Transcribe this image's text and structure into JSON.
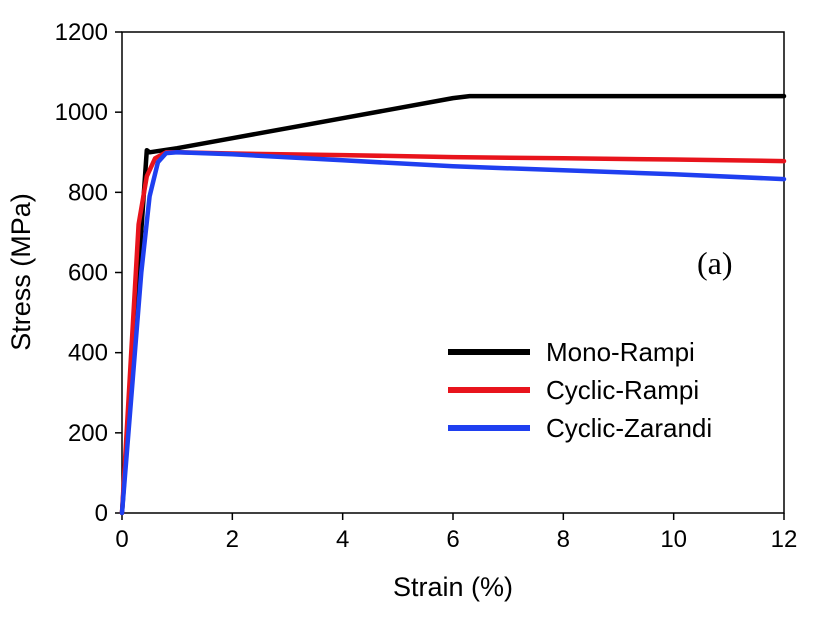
{
  "chart_data": {
    "type": "line",
    "xlabel": "Strain (%)",
    "ylabel": "Stress (MPa)",
    "xlim": [
      0,
      12
    ],
    "ylim": [
      0,
      1200
    ],
    "xticks": [
      0,
      2,
      4,
      6,
      8,
      10,
      12
    ],
    "yticks": [
      0,
      200,
      400,
      600,
      800,
      1000,
      1200
    ],
    "grid": false,
    "legend_position": "bottom-right",
    "annotation": "(a)",
    "series": [
      {
        "name": "Mono-Rampi",
        "color": "#000000",
        "points": [
          [
            0,
            0
          ],
          [
            0.45,
            905
          ],
          [
            0.5,
            900
          ],
          [
            1.0,
            910
          ],
          [
            2.0,
            935
          ],
          [
            3.0,
            960
          ],
          [
            4.0,
            985
          ],
          [
            5.0,
            1010
          ],
          [
            6.0,
            1035
          ],
          [
            6.3,
            1040
          ],
          [
            8.0,
            1040
          ],
          [
            10.0,
            1040
          ],
          [
            12.0,
            1040
          ]
        ]
      },
      {
        "name": "Cyclic-Rampi",
        "color": "#e8141c",
        "points": [
          [
            0,
            0
          ],
          [
            0.3,
            720
          ],
          [
            0.45,
            840
          ],
          [
            0.6,
            885
          ],
          [
            0.8,
            900
          ],
          [
            1.0,
            900
          ],
          [
            2.0,
            897
          ],
          [
            4.0,
            893
          ],
          [
            6.0,
            888
          ],
          [
            8.0,
            885
          ],
          [
            10.0,
            882
          ],
          [
            12.0,
            878
          ]
        ]
      },
      {
        "name": "Cyclic-Zarandi",
        "color": "#1f3ff0",
        "points": [
          [
            0,
            0
          ],
          [
            0.35,
            600
          ],
          [
            0.5,
            790
          ],
          [
            0.65,
            875
          ],
          [
            0.8,
            898
          ],
          [
            1.0,
            900
          ],
          [
            2.0,
            895
          ],
          [
            4.0,
            880
          ],
          [
            6.0,
            865
          ],
          [
            8.0,
            855
          ],
          [
            10.0,
            845
          ],
          [
            12.0,
            833
          ]
        ]
      }
    ]
  }
}
